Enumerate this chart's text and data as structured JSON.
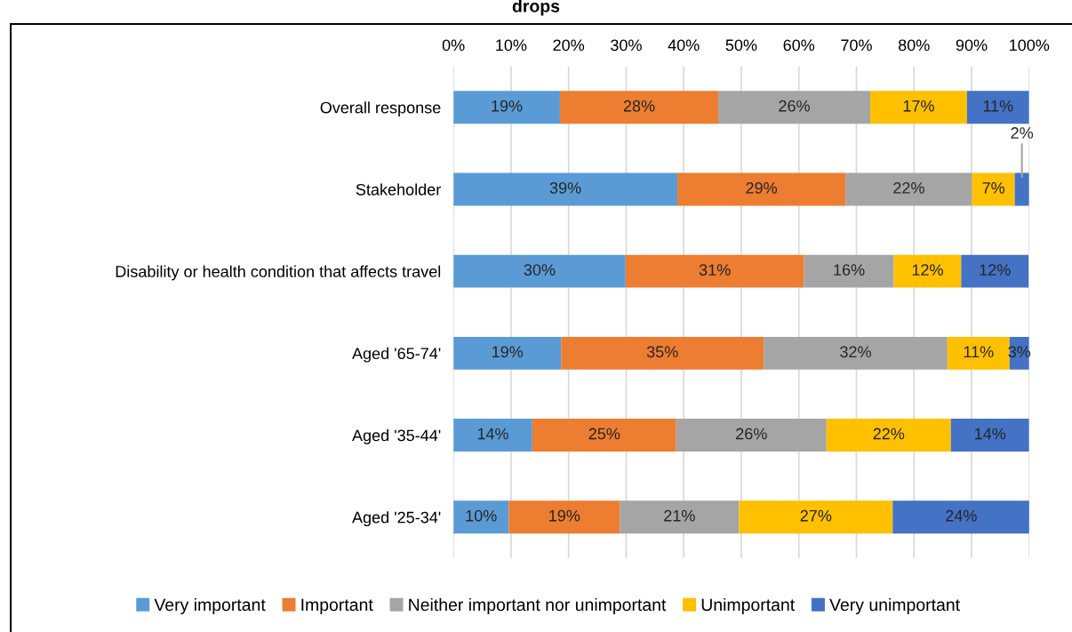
{
  "chart_data": {
    "type": "bar",
    "orientation": "horizontal",
    "stacked": true,
    "title": "drops",
    "categories": [
      "Overall response",
      "Stakeholder",
      "Disability or health condition that affects travel",
      "Aged '65-74'",
      "Aged '35-44'",
      "Aged '25-34'"
    ],
    "series": [
      {
        "name": "Very important",
        "color": "#5b9bd5",
        "values": [
          18.5,
          38.9,
          29.9,
          18.7,
          13.7,
          9.6
        ],
        "value_labels": [
          "19%",
          "39%",
          "30%",
          "19%",
          "14%",
          "10%"
        ]
      },
      {
        "name": "Important",
        "color": "#ed7d31",
        "values": [
          27.5,
          29.2,
          31.0,
          35.2,
          25.0,
          19.3
        ],
        "value_labels": [
          "28%",
          "29%",
          "31%",
          "35%",
          "25%",
          "19%"
        ]
      },
      {
        "name": "Neither important nor unimportant",
        "color": "#a5a5a5",
        "values": [
          26.4,
          22.0,
          15.6,
          31.9,
          26.1,
          20.7
        ],
        "value_labels": [
          "26%",
          "22%",
          "16%",
          "32%",
          "26%",
          "21%"
        ]
      },
      {
        "name": "Unimportant",
        "color": "#ffc000",
        "values": [
          16.8,
          7.4,
          11.7,
          10.8,
          21.6,
          26.7
        ],
        "value_labels": [
          "17%",
          "7%",
          "12%",
          "11%",
          "22%",
          "27%"
        ]
      },
      {
        "name": "Very unimportant",
        "color": "#4472c4",
        "values": [
          10.8,
          2.5,
          11.7,
          3.4,
          13.6,
          23.8
        ],
        "value_labels": [
          "11%",
          "2%",
          "12%",
          "3%",
          "14%",
          "24%"
        ]
      }
    ],
    "xlim": [
      0,
      100
    ],
    "xticks": [
      {
        "value": 0,
        "label": "0%"
      },
      {
        "value": 10,
        "label": "10%"
      },
      {
        "value": 20,
        "label": "20%"
      },
      {
        "value": 30,
        "label": "30%"
      },
      {
        "value": 40,
        "label": "40%"
      },
      {
        "value": 50,
        "label": "50%"
      },
      {
        "value": 60,
        "label": "60%"
      },
      {
        "value": 70,
        "label": "70%"
      },
      {
        "value": 80,
        "label": "80%"
      },
      {
        "value": 90,
        "label": "90%"
      },
      {
        "value": 100,
        "label": "100%"
      }
    ],
    "grid": "x",
    "legend": "bottom"
  }
}
